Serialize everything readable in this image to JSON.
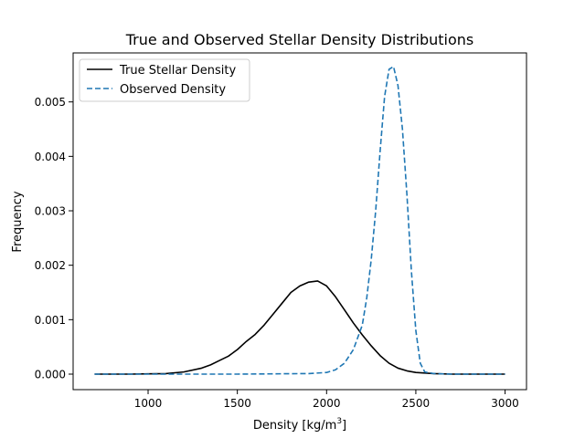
{
  "chart_data": {
    "type": "line",
    "title": "True and Observed Stellar Density Distributions",
    "xlabel": "Density [kg/m",
    "xlabel_sup": "3",
    "xlabel_close": "]",
    "ylabel": "Frequency",
    "xlim": [
      580,
      3120
    ],
    "ylim": [
      -0.000285,
      0.0059
    ],
    "xticks": [
      1000,
      1500,
      2000,
      2500,
      3000
    ],
    "xtick_labels": [
      "1000",
      "1500",
      "2000",
      "2500",
      "3000"
    ],
    "yticks": [
      0.0,
      0.001,
      0.002,
      0.003,
      0.004,
      0.005
    ],
    "ytick_labels": [
      "0.000",
      "0.001",
      "0.002",
      "0.003",
      "0.004",
      "0.005"
    ],
    "grid": false,
    "legend_position": "top-left",
    "series": [
      {
        "name": "True Stellar Density",
        "color": "#000000",
        "style": "solid",
        "x": [
          700,
          800,
          900,
          1000,
          1100,
          1200,
          1300,
          1350,
          1400,
          1450,
          1500,
          1550,
          1600,
          1650,
          1700,
          1750,
          1800,
          1850,
          1900,
          1950,
          2000,
          2050,
          2100,
          2150,
          2200,
          2250,
          2300,
          2350,
          2400,
          2450,
          2500,
          2600,
          2700,
          2800,
          2900,
          3000
        ],
        "y": [
          0.0,
          0.0,
          0.0,
          5e-06,
          1e-05,
          4e-05,
          0.00011,
          0.00017,
          0.00025,
          0.00033,
          0.00045,
          0.0006,
          0.00073,
          0.0009,
          0.0011,
          0.0013,
          0.0015,
          0.00162,
          0.00169,
          0.00171,
          0.00162,
          0.00142,
          0.00118,
          0.00094,
          0.00072,
          0.00052,
          0.00034,
          0.0002,
          0.00011,
          6e-05,
          3e-05,
          1e-05,
          0.0,
          0.0,
          0.0,
          0.0
        ]
      },
      {
        "name": "Observed Density",
        "color": "#1f77b4",
        "style": "dashed",
        "x": [
          700,
          1500,
          1900,
          2000,
          2050,
          2100,
          2150,
          2200,
          2225,
          2250,
          2275,
          2300,
          2325,
          2350,
          2375,
          2400,
          2425,
          2450,
          2475,
          2500,
          2525,
          2550,
          2600,
          2700,
          3000
        ],
        "y": [
          0.0,
          0.0,
          1e-05,
          3e-05,
          8e-05,
          0.0002,
          0.00045,
          0.0009,
          0.0014,
          0.0021,
          0.003,
          0.0041,
          0.0051,
          0.0056,
          0.00565,
          0.0053,
          0.0045,
          0.0033,
          0.0019,
          0.0008,
          0.0002,
          4e-05,
          1e-05,
          0.0,
          0.0
        ]
      }
    ]
  }
}
